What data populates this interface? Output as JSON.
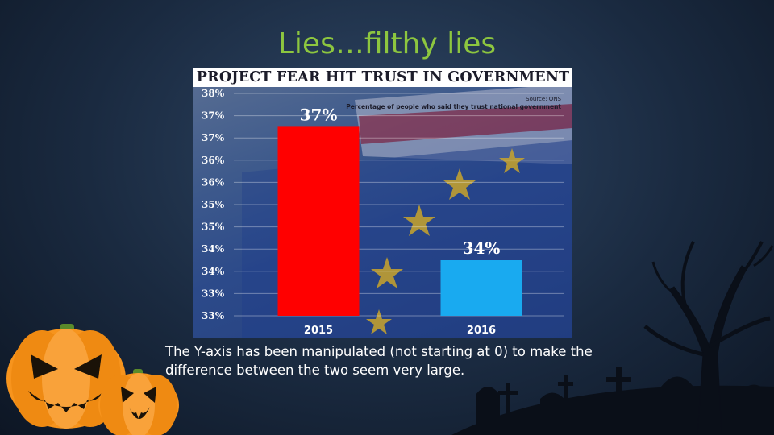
{
  "slide": {
    "title": "Lies…filthy lies",
    "caption": "The Y-axis has been manipulated (not starting at 0) to make the difference between the two seem very large."
  },
  "chart_data": {
    "type": "bar",
    "title": "PROJECT FEAR HIT TRUST IN GOVERNMENT",
    "source": "Source: ONS",
    "annotation": "Percentage of people who said they trust national government",
    "categories": [
      "2015",
      "2016"
    ],
    "values": [
      37,
      34
    ],
    "data_labels": [
      "37%",
      "34%"
    ],
    "bar_colors": [
      "#ff0000",
      "#19aaf0"
    ],
    "ylim": [
      32.75,
      37.75
    ],
    "y_tick_labels": [
      "38%",
      "37%",
      "37%",
      "36%",
      "36%",
      "35%",
      "35%",
      "34%",
      "34%",
      "33%",
      "33%"
    ],
    "grid": true,
    "xlabel": "",
    "ylabel": ""
  },
  "colors": {
    "title": "#8dc63f",
    "background": "#1a2a40",
    "pumpkin": "#f7941d"
  },
  "icons": [
    "pumpkin-icon",
    "tree-icon",
    "cross-icon",
    "tombstone-icon"
  ]
}
